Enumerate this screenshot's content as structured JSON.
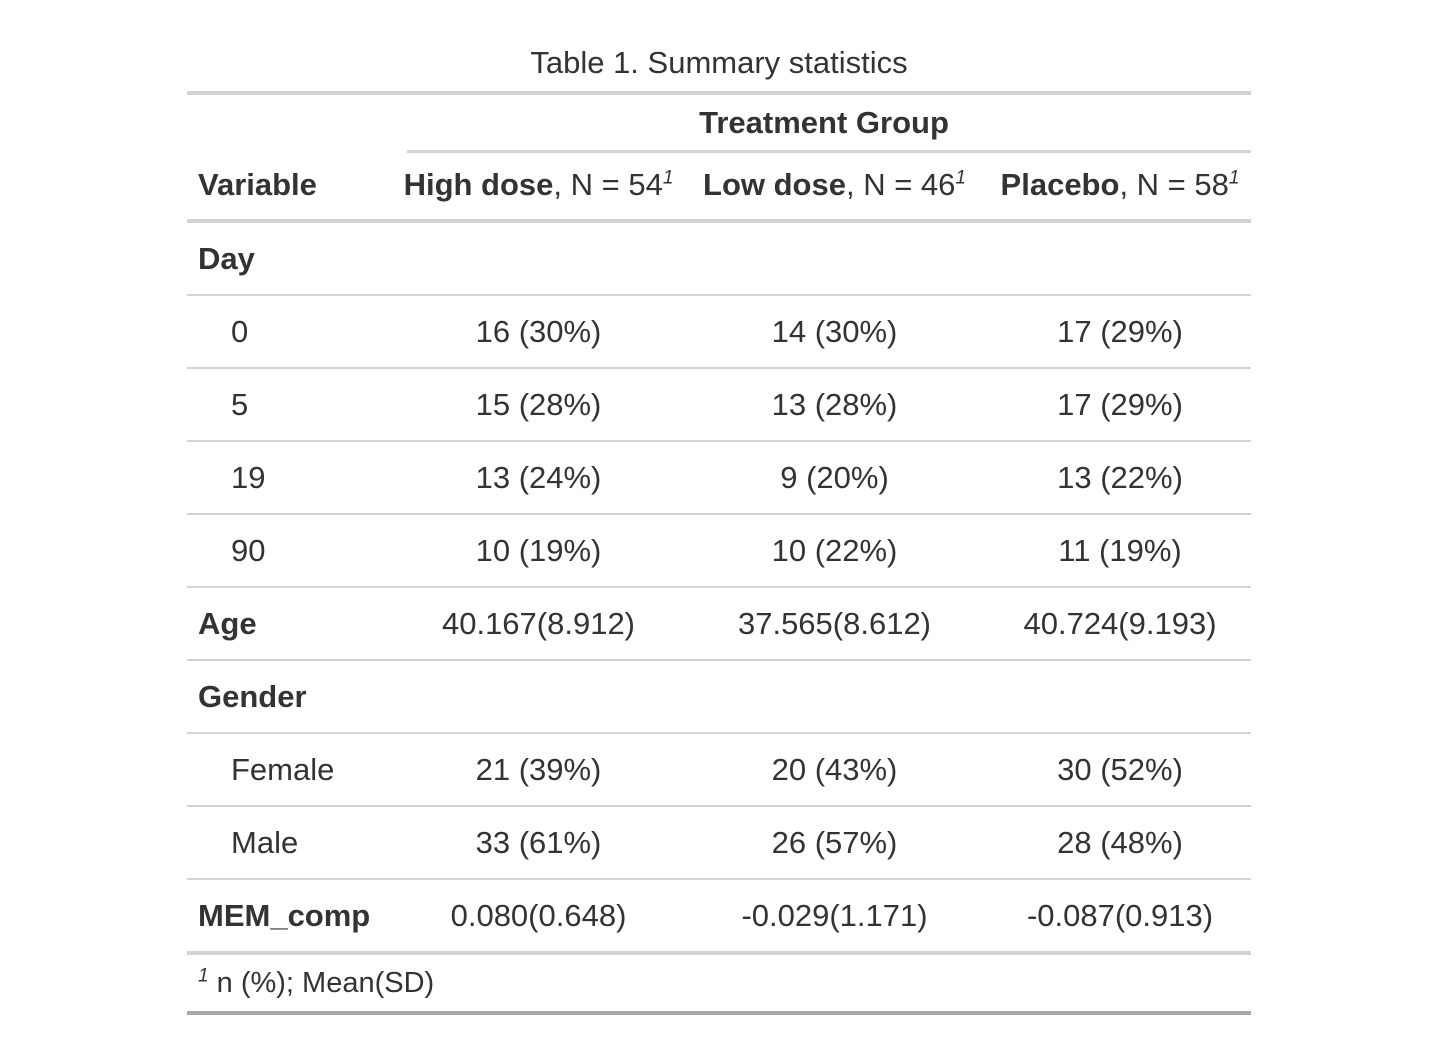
{
  "caption": "Table 1. Summary statistics",
  "spanner": "Treatment Group",
  "headers": {
    "variable": "Variable",
    "groups": [
      {
        "name": "High dose",
        "n_text": ", N = 54",
        "footnote_mark": "1"
      },
      {
        "name": "Low dose",
        "n_text": ", N = 46",
        "footnote_mark": "1"
      },
      {
        "name": "Placebo",
        "n_text": ", N = 58",
        "footnote_mark": "1"
      }
    ]
  },
  "rows": [
    {
      "label": "Day",
      "kind": "header",
      "values": [
        "",
        "",
        ""
      ]
    },
    {
      "label": "0",
      "kind": "level",
      "values": [
        "16 (30%)",
        "14 (30%)",
        "17 (29%)"
      ]
    },
    {
      "label": "5",
      "kind": "level",
      "values": [
        "15 (28%)",
        "13 (28%)",
        "17 (29%)"
      ]
    },
    {
      "label": "19",
      "kind": "level",
      "values": [
        "13 (24%)",
        "9 (20%)",
        "13 (22%)"
      ]
    },
    {
      "label": "90",
      "kind": "level",
      "values": [
        "10 (19%)",
        "10 (22%)",
        "11 (19%)"
      ]
    },
    {
      "label": "Age",
      "kind": "header",
      "values": [
        "40.167(8.912)",
        "37.565(8.612)",
        "40.724(9.193)"
      ]
    },
    {
      "label": "Gender",
      "kind": "header",
      "values": [
        "",
        "",
        ""
      ]
    },
    {
      "label": "Female",
      "kind": "level",
      "values": [
        "21 (39%)",
        "20 (43%)",
        "30 (52%)"
      ]
    },
    {
      "label": "Male",
      "kind": "level",
      "values": [
        "33 (61%)",
        "26 (57%)",
        "28 (48%)"
      ]
    },
    {
      "label": "MEM_comp",
      "kind": "header",
      "values": [
        "0.080(0.648)",
        "-0.029(1.171)",
        "-0.087(0.913)"
      ]
    }
  ],
  "footnote": {
    "mark": "1",
    "text": " n (%); Mean(SD)"
  }
}
